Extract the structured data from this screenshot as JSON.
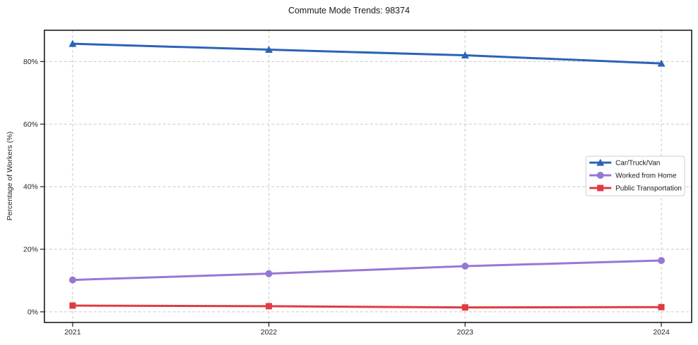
{
  "chart_data": {
    "type": "line",
    "title": "Commute Mode Trends: 98374",
    "xlabel": "",
    "ylabel": "Percentage of Workers (%)",
    "categories": [
      "2021",
      "2022",
      "2023",
      "2024"
    ],
    "y_ticks": [
      0,
      20,
      40,
      60,
      80
    ],
    "y_tick_labels": [
      "0%",
      "20%",
      "40%",
      "60%",
      "80%"
    ],
    "ylim": [
      -3.4,
      90
    ],
    "grid": true,
    "grid_style": "dashed",
    "legend_position": "center-right",
    "series": [
      {
        "name": "Car/Truck/Van",
        "color": "#2b63b8",
        "marker": "triangle",
        "values": [
          85.7,
          83.8,
          82.0,
          79.4
        ]
      },
      {
        "name": "Worked from Home",
        "color": "#9678d4",
        "marker": "circle",
        "values": [
          10.2,
          12.2,
          14.6,
          16.4
        ]
      },
      {
        "name": "Public Transportation",
        "color": "#e03b41",
        "marker": "square",
        "values": [
          2.0,
          1.8,
          1.4,
          1.5
        ]
      }
    ]
  }
}
